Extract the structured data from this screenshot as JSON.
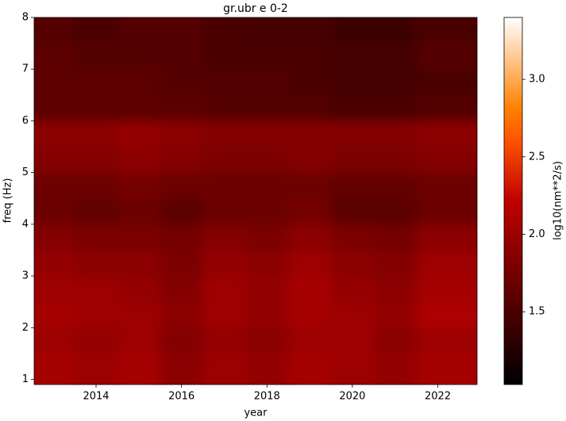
{
  "chart_data": {
    "type": "heatmap",
    "title": "gr.ubr e 0-2",
    "xlabel": "year",
    "ylabel": "freq (Hz)",
    "colorbar_label": "log10(nm**2/s)",
    "colormap": "gist_heat",
    "xlim": [
      2012.55,
      2022.92
    ],
    "xticks": [
      2014,
      2016,
      2018,
      2020,
      2022
    ],
    "ylim": [
      0.9,
      8
    ],
    "yticks": [
      1,
      2,
      3,
      4,
      5,
      6,
      7,
      8
    ],
    "clim": [
      1.03,
      3.4
    ],
    "cticks": [
      1.5,
      {
        "value": 2,
        "label": "2.0"
      },
      2.5,
      {
        "value": 3,
        "label": "3.0"
      }
    ],
    "xbins": [
      2012.55,
      2013.5,
      2014.5,
      2015.5,
      2016.5,
      2017.5,
      2018.5,
      2019.5,
      2020.5,
      2021.5,
      2022.92
    ],
    "ybins": [
      0.9,
      1.5,
      2,
      2.5,
      3,
      3.5,
      4,
      4.5,
      5,
      5.5,
      6,
      6.5,
      7,
      7.5,
      8
    ],
    "z": [
      [
        2.05,
        2.0,
        2.05,
        1.9,
        2.0,
        1.95,
        2.05,
        2.0,
        1.95,
        2.05
      ],
      [
        2.0,
        1.95,
        2.0,
        1.85,
        1.95,
        1.9,
        2.0,
        2.0,
        1.9,
        2.0
      ],
      [
        2.05,
        2.0,
        2.0,
        1.9,
        2.0,
        1.95,
        2.05,
        2.0,
        1.95,
        2.1
      ],
      [
        2.0,
        2.0,
        1.95,
        1.85,
        2.0,
        1.95,
        2.05,
        1.95,
        1.9,
        2.05
      ],
      [
        1.95,
        1.9,
        1.9,
        1.8,
        1.95,
        1.9,
        2.0,
        1.9,
        1.85,
        2.0
      ],
      [
        1.85,
        1.8,
        1.8,
        1.75,
        1.85,
        1.8,
        1.9,
        1.8,
        1.75,
        1.9
      ],
      [
        1.7,
        1.65,
        1.7,
        1.6,
        1.7,
        1.7,
        1.75,
        1.6,
        1.6,
        1.7
      ],
      [
        1.7,
        1.7,
        1.75,
        1.7,
        1.7,
        1.7,
        1.7,
        1.65,
        1.65,
        1.7
      ],
      [
        1.85,
        1.85,
        1.9,
        1.85,
        1.8,
        1.8,
        1.85,
        1.8,
        1.8,
        1.85
      ],
      [
        1.9,
        1.9,
        1.95,
        1.9,
        1.85,
        1.85,
        1.85,
        1.85,
        1.85,
        1.9
      ],
      [
        1.6,
        1.6,
        1.6,
        1.6,
        1.55,
        1.55,
        1.55,
        1.5,
        1.5,
        1.55
      ],
      [
        1.6,
        1.6,
        1.6,
        1.55,
        1.55,
        1.55,
        1.5,
        1.45,
        1.45,
        1.5
      ],
      [
        1.6,
        1.55,
        1.55,
        1.55,
        1.5,
        1.5,
        1.5,
        1.45,
        1.45,
        1.55
      ],
      [
        1.55,
        1.5,
        1.55,
        1.55,
        1.5,
        1.45,
        1.45,
        1.4,
        1.4,
        1.5
      ]
    ]
  }
}
